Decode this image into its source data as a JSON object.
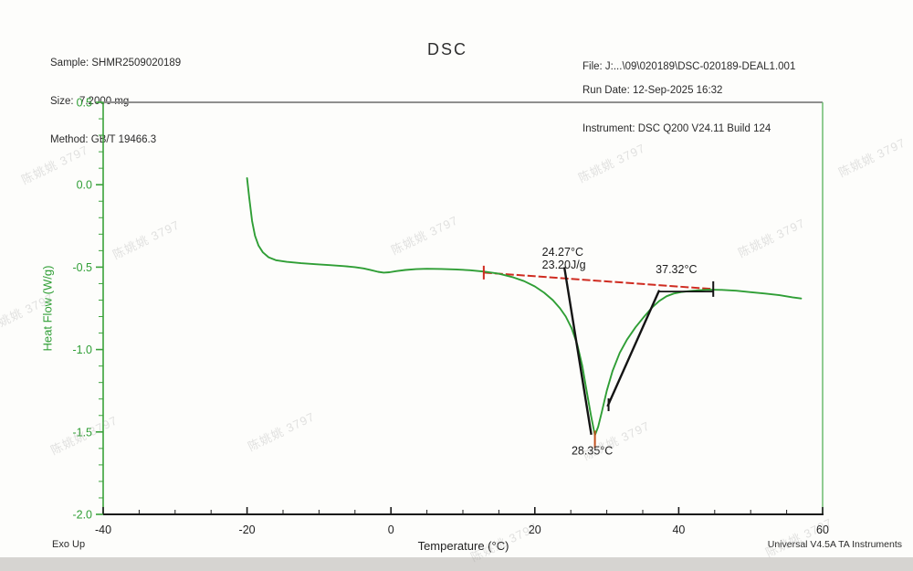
{
  "title": "DSC",
  "header": {
    "sample": "Sample: SHMR2509020189",
    "size": "Size:  7.2000 mg",
    "method": "Method: GB/T 19466.3",
    "file": "File: J:...\\09\\020189\\DSC-020189-DEAL1.001",
    "run_date": "Run Date: 12-Sep-2025 16:32",
    "instrument": "Instrument: DSC Q200 V24.11 Build 124"
  },
  "footer": {
    "exo_up": "Exo Up",
    "credit": "Universal V4.5A TA Instruments"
  },
  "watermark": {
    "text": "陈姚姚 3797"
  },
  "chart_data": {
    "type": "line",
    "title": "DSC",
    "xlabel": "Temperature (°C)",
    "ylabel": "Heat Flow (W/g)",
    "xlim": [
      -40,
      60
    ],
    "ylim": [
      -2.0,
      0.5
    ],
    "x_major_ticks": [
      -40,
      -20,
      0,
      20,
      40,
      60
    ],
    "x_tick_labels": [
      "-40",
      "-20",
      "0",
      "20",
      "40",
      "60"
    ],
    "x_minor_step": 5,
    "y_major_ticks": [
      0.5,
      0.0,
      -0.5,
      -1.0,
      -1.5,
      -2.0
    ],
    "y_tick_labels": [
      "0.5",
      "0.0",
      "-0.5",
      "-1.0",
      "-1.5",
      "-2.0"
    ],
    "y_minor_step": 0.1,
    "grid": false,
    "legend": "none",
    "colors": {
      "curve": "#2f9e35",
      "axis_green": "#3aa23a",
      "axis_right": "#6cbb6f",
      "axis_top": "#8f8f8f",
      "axis_bottom": "#1a1a1a",
      "baseline_red": "#cf2b20",
      "tangent_black": "#141414",
      "peak_tick": "#c2501f",
      "text": "#1c1c1c"
    },
    "series": [
      {
        "name": "heat-flow",
        "x": [
          -20.0,
          -19.7,
          -19.3,
          -18.9,
          -18.4,
          -17.8,
          -17.0,
          -16.0,
          -14.5,
          -12.5,
          -10.5,
          -8.5,
          -6.5,
          -5.0,
          -3.8,
          -2.8,
          -1.8,
          -1.0,
          -0.2,
          0.8,
          2.0,
          3.5,
          5.0,
          7.0,
          9.0,
          11.0,
          13.0,
          15.0,
          17.0,
          18.5,
          20.0,
          21.3,
          22.5,
          23.5,
          24.3,
          25.1,
          25.9,
          26.6,
          27.2,
          27.8,
          28.35,
          28.8,
          29.3,
          30.0,
          30.8,
          31.8,
          32.8,
          34.0,
          35.2,
          36.3,
          37.3,
          38.3,
          39.3,
          40.5,
          42.0,
          44.0,
          46.0,
          48.0,
          50.0,
          52.0,
          54.0,
          55.8,
          57.0
        ],
        "y": [
          0.04,
          -0.08,
          -0.22,
          -0.31,
          -0.37,
          -0.41,
          -0.44,
          -0.458,
          -0.468,
          -0.476,
          -0.482,
          -0.488,
          -0.494,
          -0.5,
          -0.508,
          -0.518,
          -0.528,
          -0.533,
          -0.531,
          -0.524,
          -0.517,
          -0.512,
          -0.51,
          -0.511,
          -0.514,
          -0.519,
          -0.527,
          -0.54,
          -0.562,
          -0.585,
          -0.617,
          -0.655,
          -0.7,
          -0.75,
          -0.8,
          -0.87,
          -0.97,
          -1.1,
          -1.25,
          -1.4,
          -1.52,
          -1.47,
          -1.38,
          -1.25,
          -1.13,
          -1.02,
          -0.94,
          -0.865,
          -0.8,
          -0.745,
          -0.705,
          -0.677,
          -0.66,
          -0.65,
          -0.643,
          -0.637,
          -0.638,
          -0.643,
          -0.652,
          -0.66,
          -0.67,
          -0.683,
          -0.69
        ]
      }
    ],
    "baseline": {
      "x1": 12.9,
      "y1": -0.533,
      "x2": 44.8,
      "y2": -0.633
    },
    "tangents": [
      {
        "name": "onset-tangent",
        "x1": 24.1,
        "y1": -0.5,
        "x2": 27.85,
        "y2": -1.517
      },
      {
        "name": "end-tangent",
        "x1": 37.3,
        "y1": -0.64,
        "x2": 30.1,
        "y2": -1.345
      }
    ],
    "connector": {
      "x1": 37.3,
      "y1": -0.648,
      "x2": 44.8,
      "y2": -0.648
    },
    "markers": [
      {
        "name": "baseline-start-tick",
        "x": 12.9,
        "y": -0.533,
        "len": 15,
        "colorKey": "baseline_red"
      },
      {
        "name": "baseline-end-tick",
        "x": 44.8,
        "y": -0.633,
        "len": 17,
        "colorKey": "tangent_black"
      },
      {
        "name": "peak-tick",
        "x": 28.35,
        "y": -1.545,
        "len": 19,
        "colorKey": "peak_tick"
      },
      {
        "name": "tangent-tick",
        "x": 30.25,
        "y": -1.335,
        "len": 14,
        "colorKey": "tangent_black"
      }
    ],
    "annotations": [
      {
        "name": "onset-label",
        "lines": [
          "24.27°C",
          "23.20J/g"
        ],
        "x": 21.0,
        "y": -0.37
      },
      {
        "name": "end-label",
        "lines": [
          "37.32°C"
        ],
        "x": 36.8,
        "y": -0.475
      },
      {
        "name": "peak-label",
        "lines": [
          "28.35°C"
        ],
        "x": 25.1,
        "y": -1.575
      }
    ],
    "peak_results": {
      "onset_temperature": "24.27°C",
      "enthalpy": "23.20J/g",
      "peak_temperature": "28.35°C",
      "end_temperature": "37.32°C"
    }
  }
}
